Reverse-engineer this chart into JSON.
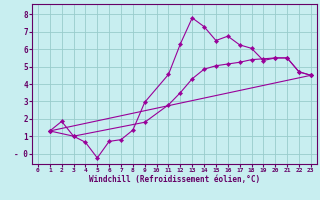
{
  "xlabel": "Windchill (Refroidissement éolien,°C)",
  "bg_color": "#c8eef0",
  "line_color": "#990099",
  "grid_color": "#99cccc",
  "axis_color": "#660066",
  "xlim": [
    -0.5,
    23.5
  ],
  "ylim": [
    -0.6,
    8.6
  ],
  "xticks": [
    0,
    1,
    2,
    3,
    4,
    5,
    6,
    7,
    8,
    9,
    10,
    11,
    12,
    13,
    14,
    15,
    16,
    17,
    18,
    19,
    20,
    21,
    22,
    23
  ],
  "yticks": [
    0,
    1,
    2,
    3,
    4,
    5,
    6,
    7,
    8
  ],
  "ytick_labels": [
    "0",
    "1",
    "2",
    "3",
    "4",
    "5",
    "6",
    "7",
    "8"
  ],
  "series1_x": [
    1,
    2,
    3,
    4,
    5,
    6,
    7,
    8,
    9,
    11,
    12,
    13,
    14,
    15,
    16,
    17,
    18,
    19,
    20,
    21,
    22,
    23
  ],
  "series1_y": [
    1.3,
    1.85,
    1.0,
    0.65,
    -0.25,
    0.7,
    0.8,
    1.35,
    2.95,
    4.55,
    6.3,
    7.8,
    7.3,
    6.5,
    6.75,
    6.25,
    6.05,
    5.35,
    5.5,
    5.5,
    4.7,
    4.5
  ],
  "series2_x": [
    1,
    3,
    9,
    11,
    12,
    13,
    14,
    15,
    16,
    17,
    18,
    19,
    20,
    21,
    22,
    23
  ],
  "series2_y": [
    1.3,
    1.0,
    1.8,
    2.8,
    3.5,
    4.3,
    4.85,
    5.05,
    5.15,
    5.25,
    5.4,
    5.45,
    5.5,
    5.5,
    4.7,
    4.5
  ],
  "series3_x": [
    1,
    23
  ],
  "series3_y": [
    1.3,
    4.5
  ]
}
